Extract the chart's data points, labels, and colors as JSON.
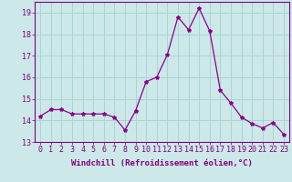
{
  "x": [
    0,
    1,
    2,
    3,
    4,
    5,
    6,
    7,
    8,
    9,
    10,
    11,
    12,
    13,
    14,
    15,
    16,
    17,
    18,
    19,
    20,
    21,
    22,
    23
  ],
  "y": [
    14.2,
    14.5,
    14.5,
    14.3,
    14.3,
    14.3,
    14.3,
    14.15,
    13.55,
    14.45,
    15.8,
    16.0,
    17.05,
    18.8,
    18.2,
    19.2,
    18.15,
    15.4,
    14.8,
    14.15,
    13.85,
    13.65,
    13.9,
    13.35
  ],
  "line_color": "#8B008B",
  "marker": "*",
  "marker_size": 3,
  "bg_color": "#cce8e8",
  "grid_color": "#aad4d4",
  "xlabel": "Windchill (Refroidissement éolien,°C)",
  "ylim": [
    13,
    19.5
  ],
  "xlim": [
    -0.5,
    23.5
  ],
  "yticks": [
    13,
    14,
    15,
    16,
    17,
    18,
    19
  ],
  "xticks": [
    0,
    1,
    2,
    3,
    4,
    5,
    6,
    7,
    8,
    9,
    10,
    11,
    12,
    13,
    14,
    15,
    16,
    17,
    18,
    19,
    20,
    21,
    22,
    23
  ],
  "tick_color": "#800080",
  "label_color": "#800080",
  "axis_color": "#800080",
  "font_size": 6,
  "xlabel_fontsize": 6.5
}
